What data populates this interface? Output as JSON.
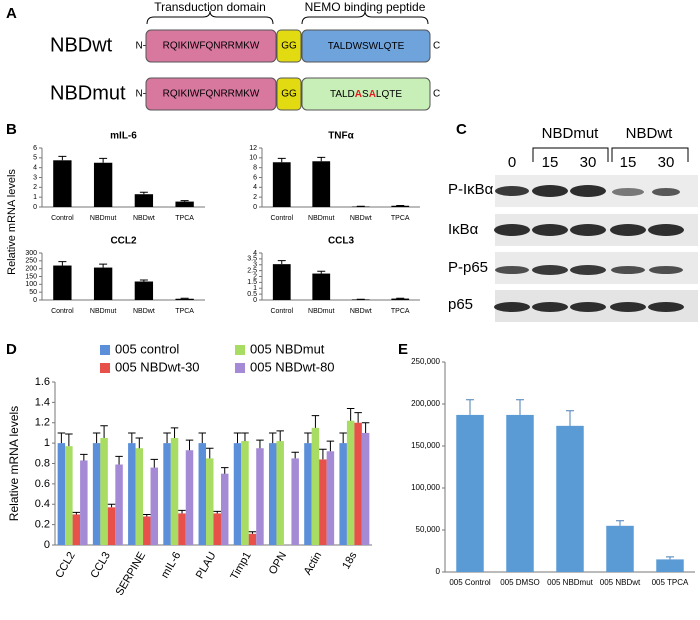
{
  "panel_labels": [
    "A",
    "B",
    "C",
    "D",
    "E"
  ],
  "diagram": {
    "header": [
      "Transduction domain",
      "NEMO binding peptide"
    ],
    "rows": [
      {
        "name": "NBDwt",
        "n": "N-",
        "transduction": "RQIKIWFQNRRMKW",
        "linker": "GG",
        "peptide": [
          {
            "text": "TALDWSWLQTE"
          }
        ],
        "c": "C",
        "peptide_color": "#6fa3dc"
      },
      {
        "name": "NBDmut",
        "n": "N-",
        "transduction": "RQIKIWFQNRRMKW",
        "linker": "GG",
        "peptide": [
          {
            "text": "TALD"
          },
          {
            "text": "A",
            "color": "#e02020"
          },
          {
            "text": "S"
          },
          {
            "text": "A",
            "color": "#e02020"
          },
          {
            "text": "LQTE"
          }
        ],
        "c": "C",
        "peptide_color": "#c9efb9"
      }
    ]
  },
  "panel_b": {
    "ylabel": "Relative mRNA levels"
  },
  "blot": {
    "groups": [
      "NBDmut",
      "NBDwt"
    ],
    "lanes": [
      "0",
      "15",
      "30",
      "15",
      "30"
    ],
    "rows": [
      "P-IκBα",
      "IκBα",
      "P-p65",
      "p65"
    ]
  },
  "chart_data": [
    {
      "type": "bar",
      "title": "mIL-6",
      "categories": [
        "Control",
        "NBDmut",
        "NBDwt",
        "TPCA"
      ],
      "values": [
        4.75,
        4.5,
        1.3,
        0.55
      ],
      "errors": [
        0.4,
        0.45,
        0.2,
        0.1
      ],
      "color": "#000000",
      "ylim": [
        0,
        6
      ],
      "yticks": [
        0,
        1,
        2,
        3,
        4,
        5,
        6
      ]
    },
    {
      "type": "bar",
      "title": "TNFα",
      "categories": [
        "Control",
        "NBDmut",
        "NBDwt",
        "TPCA"
      ],
      "values": [
        9.1,
        9.3,
        0.1,
        0.25
      ],
      "errors": [
        0.8,
        0.8,
        0.05,
        0.05
      ],
      "color": "#000000",
      "ylim": [
        0,
        12
      ],
      "yticks": [
        0,
        2,
        4,
        6,
        8,
        10,
        12
      ]
    },
    {
      "type": "bar",
      "title": "CCL2",
      "categories": [
        "Control",
        "NBDmut",
        "NBDwt",
        "TPCA"
      ],
      "values": [
        220,
        207,
        118,
        8
      ],
      "errors": [
        25,
        22,
        10,
        3
      ],
      "color": "#000000",
      "ylim": [
        0,
        300
      ],
      "yticks": [
        0,
        50,
        100,
        150,
        200,
        250,
        300
      ]
    },
    {
      "type": "bar",
      "title": "CCL3",
      "categories": [
        "Control",
        "NBDmut",
        "NBDwt",
        "TPCA"
      ],
      "values": [
        3.05,
        2.25,
        0.05,
        0.12
      ],
      "errors": [
        0.3,
        0.2,
        0.01,
        0.03
      ],
      "color": "#000000",
      "ylim": [
        0,
        4
      ],
      "yticks": [
        0,
        0.5,
        1,
        1.5,
        2,
        2.5,
        3,
        3.5,
        4
      ]
    },
    {
      "type": "bar",
      "ylabel": "Relative mRNA levels",
      "categories": [
        "CCL2",
        "CCL3",
        "SERPINE",
        "mIL-6",
        "PLAU",
        "Timp1",
        "OPN",
        "Actin",
        "18s"
      ],
      "series": [
        {
          "name": "005 control",
          "color": "#5b8fd9",
          "values": [
            1,
            1,
            1,
            1,
            1,
            1,
            1,
            1,
            1
          ],
          "errors": [
            0.1,
            0.1,
            0.1,
            0.1,
            0.1,
            0.1,
            0.1,
            0.1,
            0.1
          ]
        },
        {
          "name": "005 NBDmut",
          "color": "#a8dc62",
          "values": [
            0.97,
            1.05,
            0.95,
            1.05,
            0.85,
            1.02,
            1.02,
            1.15,
            1.22
          ],
          "errors": [
            0.12,
            0.12,
            0.1,
            0.1,
            0.1,
            0.08,
            0.1,
            0.12,
            0.12
          ]
        },
        {
          "name": "005 NBDwt-30",
          "color": "#e8504a",
          "values": [
            0.3,
            0.37,
            0.28,
            0.31,
            0.31,
            0.11,
            null,
            0.84,
            1.2
          ],
          "errors": [
            0.02,
            0.03,
            0.02,
            0.03,
            0.02,
            0.02,
            null,
            0.1,
            0.1
          ]
        },
        {
          "name": "005 NBDwt-80",
          "color": "#a58ad6",
          "values": [
            0.83,
            0.79,
            0.76,
            0.93,
            0.7,
            0.95,
            0.85,
            0.92,
            1.1
          ],
          "errors": [
            0.06,
            0.08,
            0.08,
            0.1,
            0.06,
            0.08,
            0.06,
            0.1,
            0.1
          ]
        }
      ],
      "ylim": [
        0,
        1.6
      ],
      "yticks": [
        0,
        0.2,
        0.4,
        0.6,
        0.8,
        1,
        1.2,
        1.4,
        1.6
      ]
    },
    {
      "type": "bar",
      "categories": [
        "005 Control",
        "005 DMSO",
        "005 NBDmut",
        "005 NBDwt",
        "005 TPCA"
      ],
      "values": [
        187000,
        187000,
        174000,
        55000,
        15000
      ],
      "errors": [
        18000,
        18000,
        18000,
        6000,
        3000
      ],
      "color": "#5b9bd5",
      "ylim": [
        0,
        250000
      ],
      "yticks": [
        0,
        {
          "value": 50000,
          "label": "50,000"
        },
        {
          "value": 100000,
          "label": "100,000"
        },
        {
          "value": 150000,
          "label": "150,000"
        },
        {
          "value": 200000,
          "label": "200,000"
        },
        {
          "value": 250000,
          "label": "250,000"
        }
      ]
    }
  ]
}
